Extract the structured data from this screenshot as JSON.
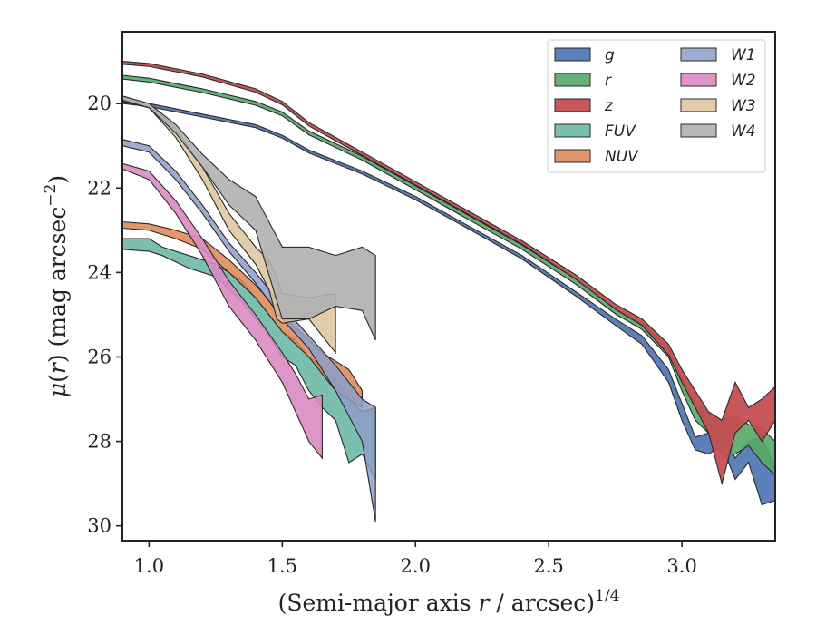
{
  "chart_data": {
    "type": "area",
    "title": "",
    "xlabel": "(Semi-major axis r / arcsec)",
    "xlabel_parts": {
      "prefix": "(Semi-major axis ",
      "var": "r",
      "middle": " / arcsec)",
      "sup": "1/4"
    },
    "ylabel": "μ(r) (mag arcsec⁻²)",
    "ylabel_parts": {
      "mu": "μ",
      "open": "(",
      "var": "r",
      "close": ") (mag arcsec",
      "sup": "−2",
      "end": ")"
    },
    "xlim": [
      0.9,
      3.35
    ],
    "ylim": [
      30.35,
      18.3
    ],
    "y_inverted": true,
    "xticks": [
      1.0,
      1.5,
      2.0,
      2.5,
      3.0
    ],
    "xtick_labels": [
      "1.0",
      "1.5",
      "2.0",
      "2.5",
      "3.0"
    ],
    "yticks": [
      20,
      22,
      24,
      26,
      28,
      30
    ],
    "ytick_labels": [
      "20",
      "22",
      "24",
      "26",
      "28",
      "30"
    ],
    "grid": false,
    "legend_position": "top-right",
    "legend_columns": 2,
    "series": [
      {
        "name": "g",
        "color": "#4c72b0",
        "alpha": 0.9,
        "x": [
          0.9,
          1.0,
          1.2,
          1.4,
          1.5,
          1.6,
          1.8,
          2.0,
          2.2,
          2.4,
          2.6,
          2.75,
          2.85,
          2.95,
          3.0,
          3.05,
          3.1,
          3.15,
          3.2,
          3.25,
          3.3,
          3.35
        ],
        "y_upper": [
          19.93,
          20.0,
          20.25,
          20.5,
          20.75,
          21.1,
          21.6,
          22.2,
          22.9,
          23.6,
          24.45,
          25.1,
          25.5,
          26.3,
          27.1,
          27.9,
          27.8,
          27.6,
          28.4,
          28.0,
          27.9,
          28.6
        ],
        "y_lower": [
          20.0,
          20.07,
          20.32,
          20.57,
          20.82,
          21.17,
          21.67,
          22.28,
          22.97,
          23.68,
          24.55,
          25.25,
          25.7,
          26.6,
          27.5,
          28.2,
          28.3,
          28.1,
          28.9,
          28.5,
          29.5,
          29.4
        ]
      },
      {
        "name": "r",
        "color": "#55a868",
        "alpha": 0.9,
        "x": [
          0.9,
          1.0,
          1.2,
          1.4,
          1.5,
          1.6,
          1.8,
          2.0,
          2.2,
          2.4,
          2.6,
          2.75,
          2.85,
          2.95,
          3.0,
          3.05,
          3.1,
          3.15,
          3.2,
          3.25,
          3.3,
          3.35
        ],
        "y_upper": [
          19.33,
          19.4,
          19.65,
          19.95,
          20.2,
          20.65,
          21.25,
          21.95,
          22.65,
          23.35,
          24.15,
          24.85,
          25.2,
          25.8,
          26.5,
          27.1,
          27.3,
          27.5,
          27.4,
          27.6,
          27.7,
          28.0
        ],
        "y_lower": [
          19.42,
          19.49,
          19.74,
          20.04,
          20.29,
          20.74,
          21.34,
          22.04,
          22.75,
          23.45,
          24.27,
          24.98,
          25.35,
          26.0,
          26.8,
          27.5,
          27.8,
          28.3,
          28.3,
          28.1,
          28.5,
          28.8
        ]
      },
      {
        "name": "z",
        "color": "#c44e52",
        "alpha": 0.95,
        "x": [
          0.9,
          1.0,
          1.2,
          1.4,
          1.5,
          1.6,
          1.8,
          2.0,
          2.2,
          2.4,
          2.6,
          2.75,
          2.85,
          2.95,
          3.0,
          3.05,
          3.1,
          3.15,
          3.2,
          3.25,
          3.3,
          3.35
        ],
        "y_upper": [
          19.0,
          19.05,
          19.3,
          19.65,
          19.95,
          20.45,
          21.15,
          21.85,
          22.55,
          23.25,
          24.05,
          24.75,
          25.1,
          25.7,
          26.3,
          26.8,
          27.3,
          27.5,
          26.6,
          27.2,
          27.0,
          26.7
        ],
        "y_lower": [
          19.07,
          19.12,
          19.37,
          19.73,
          20.03,
          20.53,
          21.23,
          21.93,
          22.63,
          23.33,
          24.15,
          24.87,
          25.25,
          25.95,
          26.6,
          27.2,
          27.8,
          29.0,
          27.8,
          27.5,
          28.0,
          27.5
        ]
      },
      {
        "name": "FUV",
        "color": "#64b5a0",
        "alpha": 0.85,
        "x": [
          0.9,
          1.0,
          1.05,
          1.15,
          1.25,
          1.35,
          1.45,
          1.5,
          1.55,
          1.6,
          1.65,
          1.7,
          1.75,
          1.8,
          1.85
        ],
        "y_upper": [
          23.2,
          23.2,
          23.4,
          23.6,
          23.8,
          24.2,
          25.0,
          25.4,
          25.6,
          26.0,
          26.2,
          26.5,
          27.0,
          27.3,
          27.2
        ],
        "y_lower": [
          23.45,
          23.5,
          23.6,
          23.9,
          24.1,
          24.7,
          25.5,
          26.0,
          26.2,
          26.8,
          27.2,
          27.5,
          28.5,
          28.3,
          28.9
        ]
      },
      {
        "name": "NUV",
        "color": "#dd8452",
        "alpha": 0.85,
        "x": [
          0.9,
          1.0,
          1.1,
          1.2,
          1.3,
          1.4,
          1.5,
          1.55,
          1.6,
          1.65,
          1.7,
          1.75,
          1.8
        ],
        "y_upper": [
          22.8,
          22.85,
          23.0,
          23.2,
          23.7,
          24.3,
          25.0,
          25.3,
          25.6,
          25.9,
          26.1,
          26.3,
          26.8
        ],
        "y_lower": [
          22.95,
          23.0,
          23.2,
          23.45,
          24.0,
          24.6,
          25.4,
          25.7,
          26.0,
          26.4,
          26.8,
          27.0,
          27.2
        ]
      },
      {
        "name": "W1",
        "color": "#8c9dc8",
        "alpha": 0.85,
        "x": [
          0.9,
          1.0,
          1.1,
          1.2,
          1.3,
          1.4,
          1.5,
          1.6,
          1.7,
          1.8,
          1.85
        ],
        "y_upper": [
          20.85,
          21.0,
          21.6,
          22.4,
          23.3,
          24.0,
          24.8,
          25.5,
          26.2,
          27.0,
          27.2
        ],
        "y_lower": [
          21.0,
          21.15,
          21.8,
          22.6,
          23.5,
          24.25,
          25.1,
          25.8,
          26.8,
          28.0,
          29.9
        ]
      },
      {
        "name": "W2",
        "color": "#da8bc3",
        "alpha": 0.9,
        "x": [
          0.9,
          1.0,
          1.1,
          1.2,
          1.3,
          1.4,
          1.5,
          1.55,
          1.6,
          1.65
        ],
        "y_upper": [
          21.42,
          21.6,
          22.3,
          23.2,
          24.2,
          25.0,
          25.9,
          26.4,
          27.0,
          26.9
        ],
        "y_lower": [
          21.55,
          21.8,
          22.6,
          23.6,
          24.8,
          25.6,
          26.6,
          27.3,
          28.0,
          28.4
        ]
      },
      {
        "name": "W3",
        "color": "#ddc39a",
        "alpha": 0.85,
        "x": [
          0.9,
          1.0,
          1.1,
          1.2,
          1.3,
          1.4,
          1.45,
          1.48,
          1.5,
          1.6,
          1.7
        ],
        "y_upper": [
          19.85,
          20.0,
          20.6,
          21.5,
          22.6,
          23.4,
          23.7,
          24.1,
          24.5,
          24.6,
          24.5
        ],
        "y_lower": [
          19.95,
          20.1,
          20.8,
          21.8,
          23.0,
          23.8,
          24.4,
          25.1,
          25.2,
          25.1,
          25.9
        ]
      },
      {
        "name": "W4",
        "color": "#b0b0b0",
        "alpha": 0.9,
        "x": [
          0.9,
          1.0,
          1.1,
          1.2,
          1.3,
          1.4,
          1.5,
          1.6,
          1.7,
          1.8,
          1.85
        ],
        "y_upper": [
          19.82,
          20.0,
          20.5,
          21.2,
          21.8,
          22.2,
          23.4,
          23.4,
          23.6,
          23.4,
          23.6
        ],
        "y_lower": [
          19.92,
          20.1,
          20.7,
          21.5,
          22.4,
          23.0,
          25.1,
          25.1,
          24.8,
          24.9,
          25.6
        ]
      }
    ]
  }
}
